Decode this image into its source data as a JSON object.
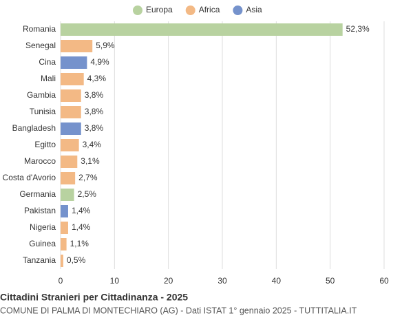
{
  "chart_data": {
    "type": "hbar",
    "title": "Cittadini Stranieri per Cittadinanza - 2025",
    "subtitle": "COMUNE DI PALMA DI MONTECHIARO (AG) - Dati ISTAT 1° gennaio 2025 - TUTTITALIA.IT",
    "categories": [
      "Romania",
      "Senegal",
      "Cina",
      "Mali",
      "Gambia",
      "Tunisia",
      "Bangladesh",
      "Egitto",
      "Marocco",
      "Costa d'Avorio",
      "Germania",
      "Pakistan",
      "Nigeria",
      "Guinea",
      "Tanzania"
    ],
    "series": [
      {
        "name": "Europa",
        "color": "#b8d2a0",
        "values": [
          52.3,
          null,
          null,
          null,
          null,
          null,
          null,
          null,
          null,
          null,
          2.5,
          null,
          null,
          null,
          null
        ],
        "value_labels": [
          "52,3%",
          null,
          null,
          null,
          null,
          null,
          null,
          null,
          null,
          null,
          "2,5%",
          null,
          null,
          null,
          null
        ]
      },
      {
        "name": "Africa",
        "color": "#f3b985",
        "values": [
          null,
          5.9,
          null,
          4.3,
          3.8,
          3.8,
          null,
          3.4,
          3.1,
          2.7,
          null,
          null,
          1.4,
          1.1,
          0.5
        ],
        "value_labels": [
          null,
          "5,9%",
          null,
          "4,3%",
          "3,8%",
          "3,8%",
          null,
          "3,4%",
          "3,1%",
          "2,7%",
          null,
          null,
          "1,4%",
          "1,1%",
          "0,5%"
        ]
      },
      {
        "name": "Asia",
        "color": "#7592cc",
        "values": [
          null,
          null,
          4.9,
          null,
          null,
          null,
          3.8,
          null,
          null,
          null,
          null,
          1.4,
          null,
          null,
          null
        ],
        "value_labels": [
          null,
          null,
          "4,9%",
          null,
          null,
          null,
          "3,8%",
          null,
          null,
          null,
          null,
          "1,4%",
          null,
          null,
          null
        ]
      }
    ],
    "xlim": [
      0,
      60
    ],
    "xticks": [
      0,
      10,
      20,
      30,
      40,
      50,
      60
    ],
    "grid": true,
    "legend": "top"
  }
}
